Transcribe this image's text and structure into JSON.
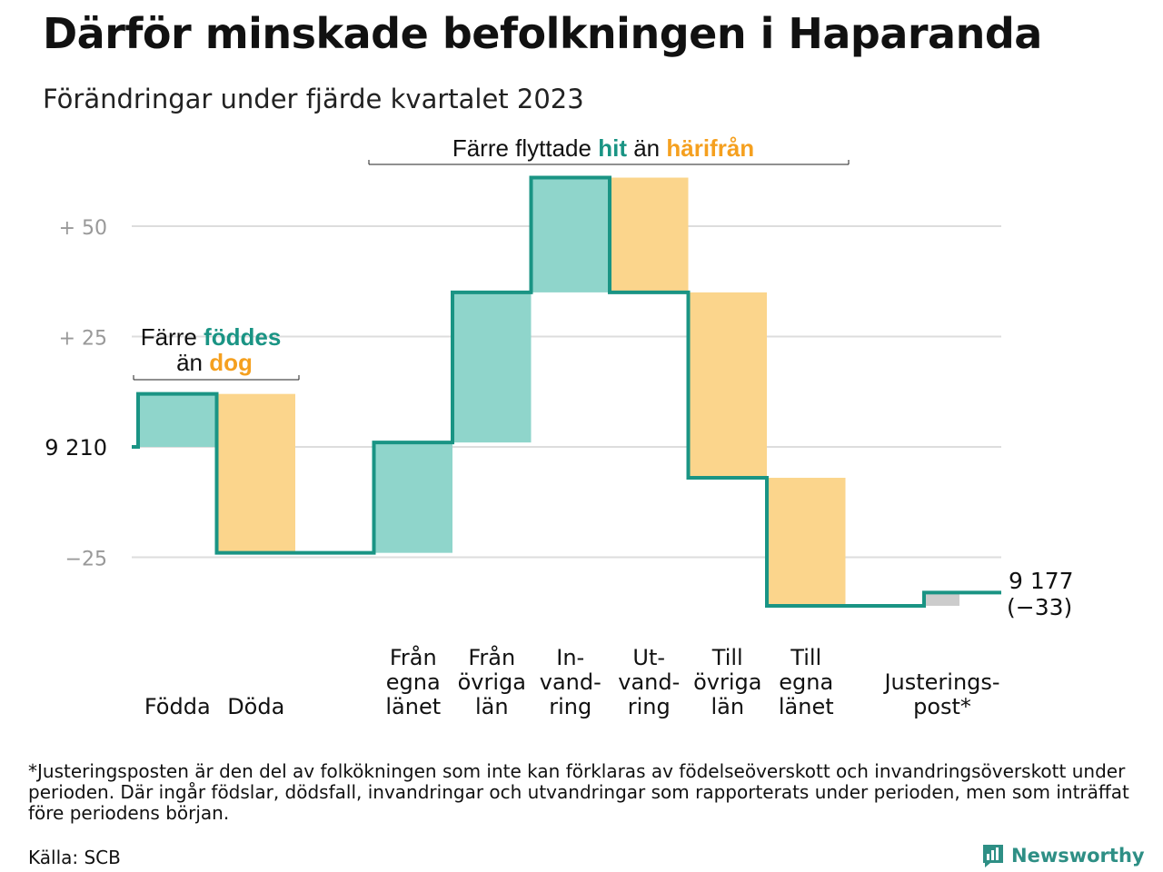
{
  "title": "Därför minskade befolkningen i Haparanda",
  "subtitle": "Förändringar under fjärde kvartalet 2023",
  "colors": {
    "teal": "#1a9484",
    "teal_fill": "#8fd5cb",
    "orange": "#f5a01f",
    "orange_fill": "#fbd58c",
    "gray_fill": "#cccccc",
    "grid": "#dddddd",
    "tick": "#999999"
  },
  "annotations": {
    "births": {
      "pre": "Färre",
      "hi": "föddes",
      "line2pre": "än",
      "line2hi": "dog"
    },
    "moves": {
      "pre": "Färre flyttade",
      "hi": "hit",
      "mid": "än",
      "hi2": "härifrån"
    }
  },
  "end_label": {
    "value": "9 177",
    "change": "(−33)"
  },
  "footnote": "*Justeringsposten är den del av folkökningen som inte kan förklaras av födelseöverskott och invandringsöverskott under perioden. Där ingår födslar, dödsfall, invandringar och utvandringar som rapporterats under perioden, men som inträffat före periodens början.",
  "source": "Källa: SCB",
  "brand": {
    "name": "Newsworthy",
    "icon": "bar-chart-icon"
  },
  "chart_data": {
    "type": "waterfall",
    "start_value": 9210,
    "end_value": 9177,
    "net_change": -33,
    "yticks": [
      {
        "value": 50,
        "label": "+  50"
      },
      {
        "value": 25,
        "label": "+  25"
      },
      {
        "value": 0,
        "label": "9  210"
      },
      {
        "value": -25,
        "label": "−25"
      }
    ],
    "ylim": [
      -35,
      62
    ],
    "steps": [
      {
        "label": [
          "Födda"
        ],
        "change": 12,
        "kind": "in"
      },
      {
        "label": [
          "Döda"
        ],
        "change": -36,
        "kind": "out"
      },
      {
        "label": [],
        "change": 0,
        "kind": "gap"
      },
      {
        "label": [
          "Från",
          "egna",
          "länet"
        ],
        "change": 25,
        "kind": "in"
      },
      {
        "label": [
          "Från",
          "övriga",
          "län"
        ],
        "change": 34,
        "kind": "in"
      },
      {
        "label": [
          "In-",
          "vand-",
          "ring"
        ],
        "change": 26,
        "kind": "in"
      },
      {
        "label": [
          "Ut-",
          "vand-",
          "ring"
        ],
        "change": -26,
        "kind": "out"
      },
      {
        "label": [
          "Till",
          "övriga",
          "län"
        ],
        "change": -42,
        "kind": "out"
      },
      {
        "label": [
          "Till",
          "egna",
          "länet"
        ],
        "change": -29,
        "kind": "out"
      },
      {
        "label": [],
        "change": 0,
        "kind": "gap"
      },
      {
        "label": [
          "Justerings-",
          "post*"
        ],
        "change": 3,
        "kind": "adjust"
      }
    ]
  }
}
